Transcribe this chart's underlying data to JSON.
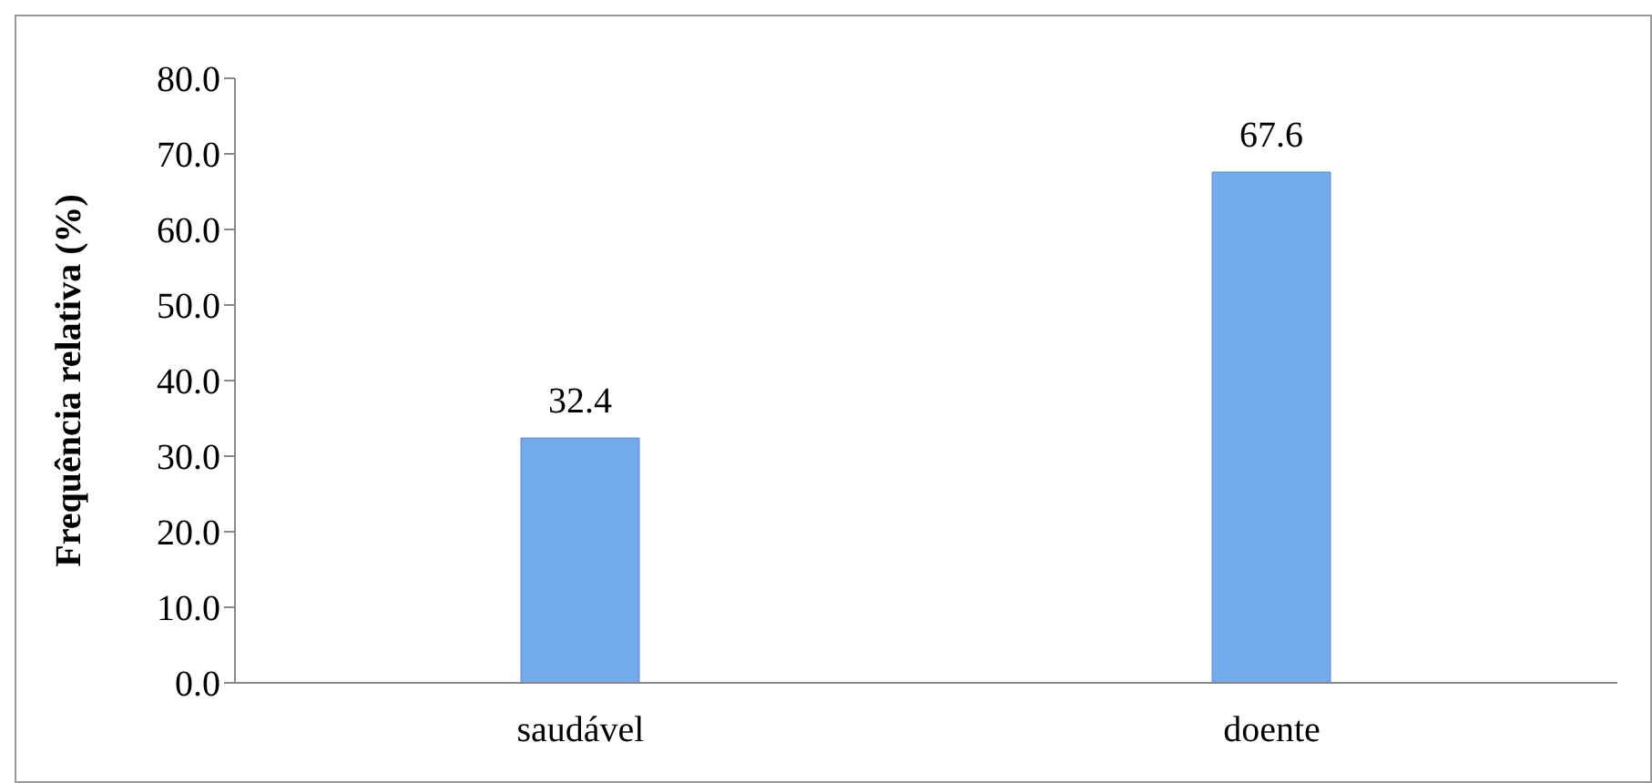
{
  "chart_data": {
    "type": "bar",
    "ylabel": "Frequência relativa (%)",
    "categories": [
      "saudável",
      "doente"
    ],
    "values": [
      32.4,
      67.6
    ],
    "color": "#73aaea",
    "ylim": [
      0,
      80
    ],
    "yticks": [
      {
        "value": 0,
        "label": "0.0"
      },
      {
        "value": 10,
        "label": "10.0"
      },
      {
        "value": 20,
        "label": "20.0"
      },
      {
        "value": 30,
        "label": "30.0"
      },
      {
        "value": 40,
        "label": "40.0"
      },
      {
        "value": 50,
        "label": "50.0"
      },
      {
        "value": 60,
        "label": "60.0"
      },
      {
        "value": 70,
        "label": "70.0"
      },
      {
        "value": 80,
        "label": "80.0"
      }
    ],
    "data_labels": true,
    "grid": false,
    "legend": false
  }
}
